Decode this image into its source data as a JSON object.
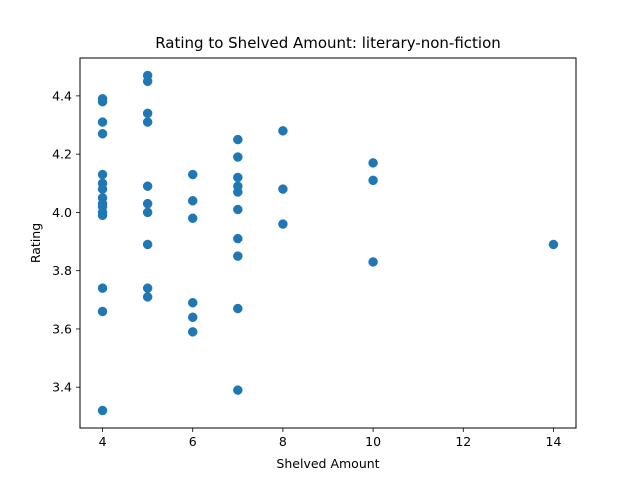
{
  "chart_data": {
    "type": "scatter",
    "title": "Rating to Shelved Amount: literary-non-fiction",
    "xlabel": "Shelved Amount",
    "ylabel": "Rating",
    "xlim": [
      3.5,
      14.5
    ],
    "ylim": [
      3.26,
      4.53
    ],
    "xticks": [
      4,
      6,
      8,
      10,
      12,
      14
    ],
    "yticks": [
      3.4,
      3.6,
      3.8,
      4.0,
      4.2,
      4.4
    ],
    "xtick_labels": [
      "4",
      "6",
      "8",
      "10",
      "12",
      "14"
    ],
    "ytick_labels": [
      "3.4",
      "3.6",
      "3.8",
      "4.0",
      "4.2",
      "4.4"
    ],
    "grid": false,
    "marker_color": "#1f77b4",
    "points": [
      {
        "x": 4,
        "y": 4.39
      },
      {
        "x": 4,
        "y": 4.38
      },
      {
        "x": 4,
        "y": 4.31
      },
      {
        "x": 4,
        "y": 4.27
      },
      {
        "x": 4,
        "y": 4.13
      },
      {
        "x": 4,
        "y": 4.1
      },
      {
        "x": 4,
        "y": 4.08
      },
      {
        "x": 4,
        "y": 4.05
      },
      {
        "x": 4,
        "y": 4.03
      },
      {
        "x": 4,
        "y": 4.02
      },
      {
        "x": 4,
        "y": 4.0
      },
      {
        "x": 4,
        "y": 3.99
      },
      {
        "x": 4,
        "y": 3.74
      },
      {
        "x": 4,
        "y": 3.66
      },
      {
        "x": 4,
        "y": 3.32
      },
      {
        "x": 5,
        "y": 4.47
      },
      {
        "x": 5,
        "y": 4.45
      },
      {
        "x": 5,
        "y": 4.34
      },
      {
        "x": 5,
        "y": 4.31
      },
      {
        "x": 5,
        "y": 4.09
      },
      {
        "x": 5,
        "y": 4.03
      },
      {
        "x": 5,
        "y": 4.0
      },
      {
        "x": 5,
        "y": 3.89
      },
      {
        "x": 5,
        "y": 3.74
      },
      {
        "x": 5,
        "y": 3.71
      },
      {
        "x": 6,
        "y": 4.13
      },
      {
        "x": 6,
        "y": 4.04
      },
      {
        "x": 6,
        "y": 3.98
      },
      {
        "x": 6,
        "y": 3.69
      },
      {
        "x": 6,
        "y": 3.64
      },
      {
        "x": 6,
        "y": 3.59
      },
      {
        "x": 7,
        "y": 4.25
      },
      {
        "x": 7,
        "y": 4.19
      },
      {
        "x": 7,
        "y": 4.12
      },
      {
        "x": 7,
        "y": 4.09
      },
      {
        "x": 7,
        "y": 4.07
      },
      {
        "x": 7,
        "y": 4.01
      },
      {
        "x": 7,
        "y": 3.91
      },
      {
        "x": 7,
        "y": 3.85
      },
      {
        "x": 7,
        "y": 3.67
      },
      {
        "x": 7,
        "y": 3.39
      },
      {
        "x": 8,
        "y": 4.28
      },
      {
        "x": 8,
        "y": 4.08
      },
      {
        "x": 8,
        "y": 3.96
      },
      {
        "x": 10,
        "y": 4.17
      },
      {
        "x": 10,
        "y": 4.11
      },
      {
        "x": 10,
        "y": 3.83
      },
      {
        "x": 14,
        "y": 3.89
      }
    ]
  }
}
